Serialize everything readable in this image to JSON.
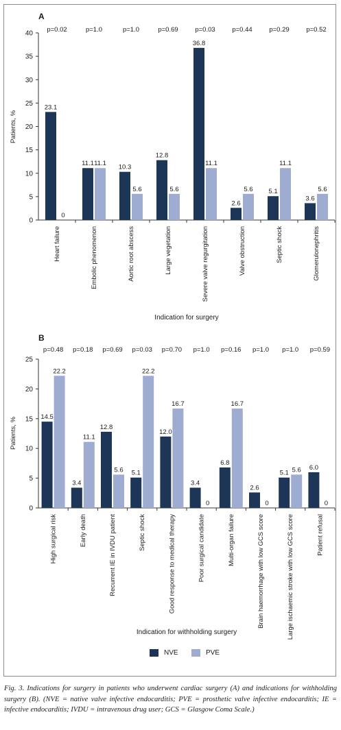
{
  "colors": {
    "nve": "#1d3557",
    "pve": "#9eacd1",
    "axis": "#333333",
    "frame": "#8a8a8a"
  },
  "legend": {
    "nve": "NVE",
    "pve": "PVE"
  },
  "caption": "Fig. 3. Indications for surgery in patients who underwent cardiac surgery (A) and indications for withholding surgery (B). (NVE = native valve infective endocarditis; PVE = prosthetic valve infective endocarditis; IE = infective endocarditis; IVDU = intravenous drug user; GCS = Glasgow Coma Scale.)",
  "chart_data": [
    {
      "type": "bar",
      "panel": "A",
      "xlabel": "Indication for surgery",
      "ylabel": "Patients, %",
      "ylim": [
        0,
        40
      ],
      "yticks": [
        0,
        5,
        10,
        15,
        20,
        25,
        30,
        35,
        40
      ],
      "grid": false,
      "legend": "bottom",
      "categories": [
        "Heart failure",
        "Embolic phenomenon",
        "Aortic root abscess",
        "Large vegetation",
        "Severe valve regurgitation",
        "Valve obstruction",
        "Septic shock",
        "Glomerulonephritis"
      ],
      "p_values": [
        "p=0.02",
        "p=1.0",
        "p=1.0",
        "p=0.69",
        "p=0.03",
        "p=0.44",
        "p=0.29",
        "p=0.52"
      ],
      "series": [
        {
          "name": "NVE",
          "values": [
            23.1,
            11.1,
            10.3,
            12.8,
            36.8,
            2.6,
            5.1,
            3.6
          ],
          "labels": [
            "23.1",
            "11.1",
            "10.3",
            "12.8",
            "36.8",
            "2.6",
            "5.1",
            "3.6"
          ]
        },
        {
          "name": "PVE",
          "values": [
            0,
            11.1,
            5.6,
            5.6,
            11.1,
            5.6,
            11.1,
            5.6
          ],
          "labels": [
            "0",
            "11.1",
            "5.6",
            "5.6",
            "11.1",
            "5.6",
            "11.1",
            "5.6"
          ]
        }
      ]
    },
    {
      "type": "bar",
      "panel": "B",
      "xlabel": "Indication for withholding surgery",
      "ylabel": "Patients, %",
      "ylim": [
        0,
        25
      ],
      "yticks": [
        0,
        5,
        10,
        15,
        20,
        25
      ],
      "grid": false,
      "legend": "bottom",
      "categories": [
        "High surgical risk",
        "Early death",
        "Recurrent IE in IVDU patient",
        "Septic shock",
        "Good response to medical therapy",
        "Poor surgical candidate",
        "Multi-organ failure",
        "Brain haemorrhage with low GCS score",
        "Large ischaemic stroke with low GCS score",
        "Patient refusal"
      ],
      "p_values": [
        "p=0.48",
        "p=0.18",
        "p=0.69",
        "p=0.03",
        "p=0.70",
        "p=1.0",
        "p=0.16",
        "p=1.0",
        "p=1.0",
        "p=0.59"
      ],
      "series": [
        {
          "name": "NVE",
          "values": [
            14.5,
            3.4,
            12.8,
            5.1,
            12.0,
            3.4,
            6.8,
            2.6,
            5.1,
            6.0
          ],
          "labels": [
            "14.5",
            "3.4",
            "12.8",
            "5.1",
            "12.0",
            "3.4",
            "6.8",
            "2.6",
            "5.1",
            "6.0"
          ]
        },
        {
          "name": "PVE",
          "values": [
            22.2,
            11.1,
            5.6,
            22.2,
            16.7,
            0,
            16.7,
            0,
            5.6,
            0
          ],
          "labels": [
            "22.2",
            "11.1",
            "5.6",
            "22.2",
            "16.7",
            "0",
            "16.7",
            "0",
            "5.6",
            "0"
          ]
        }
      ]
    }
  ]
}
